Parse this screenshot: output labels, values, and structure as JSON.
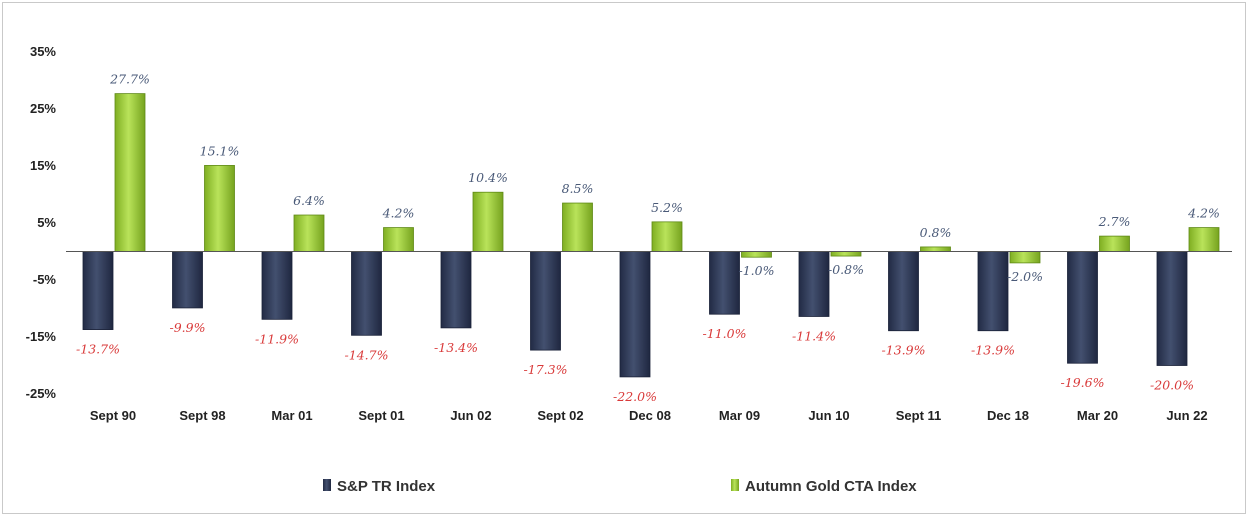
{
  "chart_data": {
    "type": "bar",
    "categories": [
      "Sept 90",
      "Sept 98",
      "Mar 01",
      "Sept 01",
      "Jun 02",
      "Sept 02",
      "Dec 08",
      "Mar 09",
      "Jun 10",
      "Sept 11",
      "Dec 18",
      "Mar 20",
      "Jun 22"
    ],
    "series": [
      {
        "name": "S&P TR Index",
        "color": "#2e3a5c",
        "values": [
          -13.7,
          -9.9,
          -11.9,
          -14.7,
          -13.4,
          -17.3,
          -22.0,
          -11.0,
          -11.4,
          -13.9,
          -13.9,
          -19.6,
          -20.0
        ],
        "labels": [
          "-13.7%",
          "-9.9%",
          "-11.9%",
          "-14.7%",
          "-13.4%",
          "-17.3%",
          "-22.0%",
          "-11.0%",
          "-11.4%",
          "-13.9%",
          "-13.9%",
          "-19.6%",
          "-20.0%"
        ]
      },
      {
        "name": "Autumn Gold CTA Index",
        "color": "#9acd32",
        "values": [
          27.7,
          15.1,
          6.4,
          4.2,
          10.4,
          8.5,
          5.2,
          -1.0,
          -0.8,
          0.8,
          -2.0,
          2.7,
          4.2
        ],
        "labels": [
          "27.7%",
          "15.1%",
          "6.4%",
          "4.2%",
          "10.4%",
          "8.5%",
          "5.2%",
          "-1.0%",
          "-0.8%",
          "0.8%",
          "-2.0%",
          "2.7%",
          "4.2%"
        ]
      }
    ],
    "y_ticks": [
      "35%",
      "25%",
      "15%",
      "5%",
      "-5%",
      "-15%",
      "-25%"
    ],
    "y_tick_values": [
      35,
      25,
      15,
      5,
      -5,
      -15,
      -25
    ],
    "ylim": [
      -25,
      35
    ],
    "title": "",
    "xlabel": "",
    "ylabel": "",
    "grid": false,
    "legend_position": "bottom"
  }
}
